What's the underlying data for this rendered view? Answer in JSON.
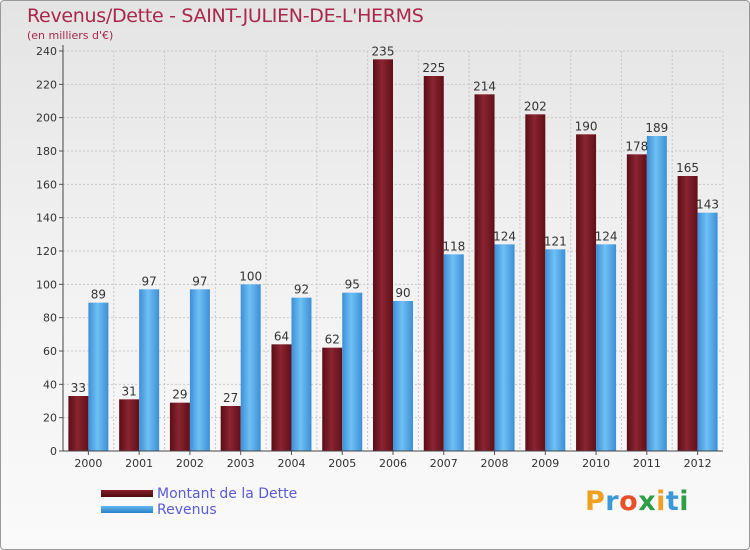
{
  "title": "Revenus/Dette - SAINT-JULIEN-DE-L'HERMS",
  "subtitle": "(en milliers d'€)",
  "logo": {
    "text": "Proxiti",
    "letters": [
      {
        "char": "P",
        "color": "#f0a020"
      },
      {
        "char": "r",
        "color": "#3a9ad9"
      },
      {
        "char": "o",
        "color": "#e8502a"
      },
      {
        "char": "x",
        "color": "#2e9e47"
      },
      {
        "char": "i",
        "color": "#f0a020"
      },
      {
        "char": "t",
        "color": "#3a9ad9"
      },
      {
        "char": "i",
        "color": "#2e9e47"
      }
    ]
  },
  "legend": [
    {
      "label": "Montant de la Dette",
      "color": "#6e1520"
    },
    {
      "label": "Revenus",
      "color": "#4aa3e6"
    }
  ],
  "chart_data": {
    "type": "bar",
    "title": "Revenus/Dette - SAINT-JULIEN-DE-L'HERMS",
    "subtitle": "(en milliers d'€)",
    "categories": [
      "2000",
      "2001",
      "2002",
      "2003",
      "2004",
      "2005",
      "2006",
      "2007",
      "2008",
      "2009",
      "2010",
      "2011",
      "2012"
    ],
    "series": [
      {
        "name": "Montant de la Dette",
        "color": "#6e1520",
        "values": [
          33,
          31,
          29,
          27,
          64,
          62,
          235,
          225,
          214,
          202,
          190,
          178,
          165
        ]
      },
      {
        "name": "Revenus",
        "color": "#4aa3e6",
        "values": [
          89,
          97,
          97,
          100,
          92,
          95,
          90,
          118,
          124,
          121,
          124,
          189,
          143
        ]
      }
    ],
    "ylim": [
      0,
      240
    ],
    "yticks": [
      0,
      20,
      40,
      60,
      80,
      100,
      120,
      140,
      160,
      180,
      200,
      220,
      240
    ],
    "grid": true,
    "legend_position": "bottom-left"
  }
}
